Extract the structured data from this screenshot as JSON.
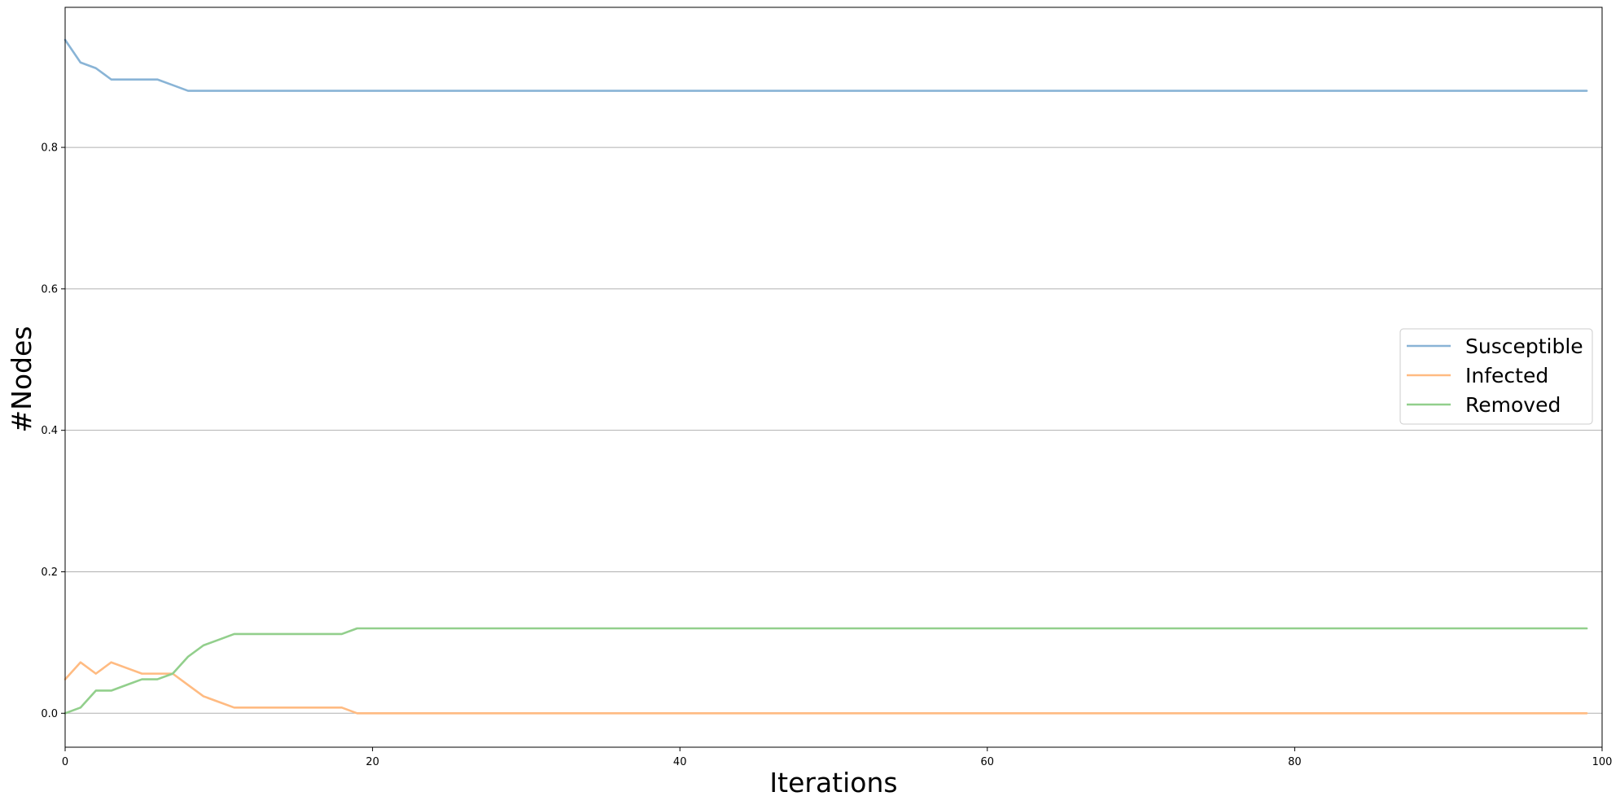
{
  "chart_data": {
    "type": "line",
    "title": "",
    "xlabel": "Iterations",
    "ylabel": "#Nodes",
    "xlim": [
      0,
      100
    ],
    "ylim": [
      -0.048,
      0.998
    ],
    "xticks": [
      0,
      20,
      40,
      60,
      80,
      100
    ],
    "xtick_labels": [
      "0",
      "20",
      "40",
      "60",
      "80",
      "100"
    ],
    "yticks": [
      0.0,
      0.2,
      0.4,
      0.6,
      0.8
    ],
    "ytick_labels": [
      "0.0",
      "0.2",
      "0.4",
      "0.6",
      "0.8"
    ],
    "grid": "horizontal",
    "legend_position": "center-right",
    "series": [
      {
        "name": "Susceptible",
        "color": "#89b4d6",
        "points": [
          [
            0,
            0.952
          ],
          [
            1,
            0.92
          ],
          [
            2,
            0.912
          ],
          [
            3,
            0.896
          ],
          [
            4,
            0.896
          ],
          [
            5,
            0.896
          ],
          [
            6,
            0.896
          ],
          [
            7,
            0.888
          ],
          [
            8,
            0.88
          ],
          [
            99,
            0.88
          ]
        ]
      },
      {
        "name": "Infected",
        "color": "#ffbb82",
        "points": [
          [
            0,
            0.048
          ],
          [
            1,
            0.072
          ],
          [
            2,
            0.056
          ],
          [
            3,
            0.072
          ],
          [
            4,
            0.064
          ],
          [
            5,
            0.056
          ],
          [
            6,
            0.056
          ],
          [
            7,
            0.056
          ],
          [
            8,
            0.04
          ],
          [
            9,
            0.024
          ],
          [
            10,
            0.016
          ],
          [
            11,
            0.008
          ],
          [
            18,
            0.008
          ],
          [
            19,
            0.0
          ],
          [
            99,
            0.0
          ]
        ]
      },
      {
        "name": "Removed",
        "color": "#92cf8c",
        "points": [
          [
            0,
            0.0
          ],
          [
            1,
            0.008
          ],
          [
            2,
            0.032
          ],
          [
            3,
            0.032
          ],
          [
            4,
            0.04
          ],
          [
            5,
            0.048
          ],
          [
            6,
            0.048
          ],
          [
            7,
            0.056
          ],
          [
            8,
            0.08
          ],
          [
            9,
            0.096
          ],
          [
            10,
            0.104
          ],
          [
            11,
            0.112
          ],
          [
            18,
            0.112
          ],
          [
            19,
            0.12
          ],
          [
            99,
            0.12
          ]
        ]
      }
    ]
  }
}
